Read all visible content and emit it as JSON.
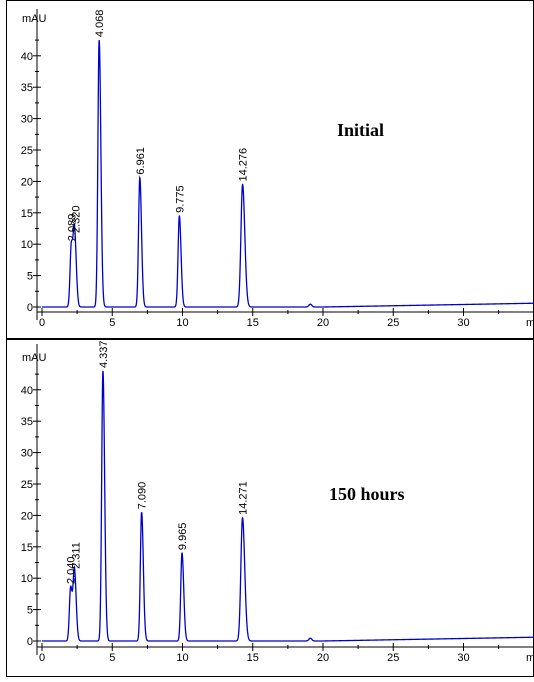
{
  "chart_data": [
    {
      "type": "line",
      "title": "Initial",
      "xlabel": "min",
      "ylabel": "mAU",
      "xlim": [
        0,
        35
      ],
      "ylim": [
        -1,
        46
      ],
      "xticks": [
        0,
        5,
        10,
        15,
        20,
        25,
        30
      ],
      "yticks": [
        0,
        5,
        10,
        15,
        20,
        25,
        30,
        35,
        40
      ],
      "baseline_points": [
        [
          18.8,
          0
        ],
        [
          19.1,
          0.45
        ],
        [
          19.5,
          0
        ],
        [
          29.0,
          0.25
        ],
        [
          35,
          0.6
        ]
      ],
      "peaks": [
        {
          "rt": 2.089,
          "label": "2.089",
          "height": 10.0
        },
        {
          "rt": 2.32,
          "label": "2.320",
          "height": 11.3
        },
        {
          "rt": 4.068,
          "label": "4.068",
          "height": 42.5
        },
        {
          "rt": 6.961,
          "label": "6.961",
          "height": 20.6
        },
        {
          "rt": 9.775,
          "label": "9.775",
          "height": 14.5
        },
        {
          "rt": 14.276,
          "label": "14.276",
          "height": 19.5
        }
      ],
      "line_color": "#0000cc",
      "grid": false
    },
    {
      "type": "line",
      "title": "150 hours",
      "xlabel": "min",
      "ylabel": "mAU",
      "xlim": [
        0,
        35
      ],
      "ylim": [
        -1,
        46
      ],
      "xticks": [
        0,
        5,
        10,
        15,
        20,
        25,
        30
      ],
      "yticks": [
        0,
        5,
        10,
        15,
        20,
        25,
        30,
        35,
        40
      ],
      "baseline_points": [
        [
          18.8,
          0
        ],
        [
          19.1,
          0.45
        ],
        [
          19.5,
          0
        ],
        [
          29.0,
          0.25
        ],
        [
          35,
          0.6
        ]
      ],
      "peaks": [
        {
          "rt": 2.04,
          "label": "2.040",
          "height": 8.6
        },
        {
          "rt": 2.311,
          "label": "2.311",
          "height": 11.0
        },
        {
          "rt": 4.337,
          "label": "4.337",
          "height": 43.0
        },
        {
          "rt": 7.09,
          "label": "7.090",
          "height": 20.5
        },
        {
          "rt": 9.965,
          "label": "9.965",
          "height": 14.0
        },
        {
          "rt": 14.271,
          "label": "14.271",
          "height": 19.6
        }
      ],
      "line_color": "#0000cc",
      "grid": false
    }
  ]
}
